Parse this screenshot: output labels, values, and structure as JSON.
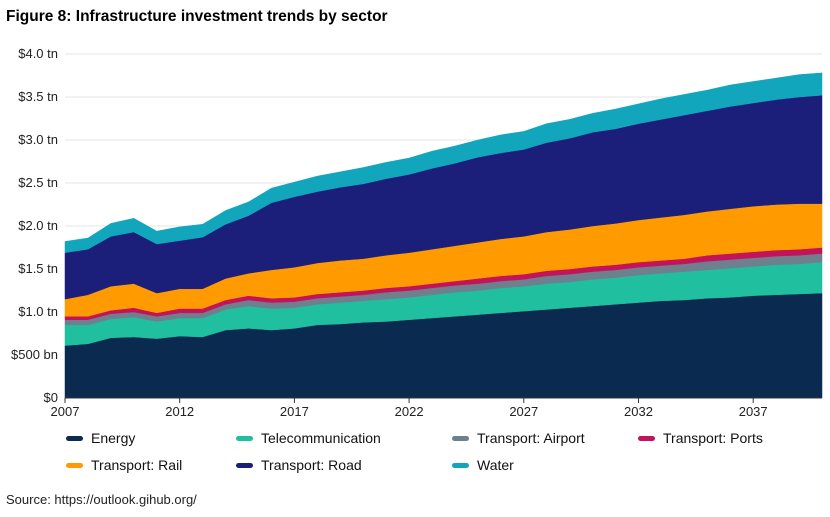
{
  "title_prefix": "Figure 8:",
  "title_text": "Infrastructure investment trends by sector",
  "source": "Source: https://outlook.gihub.org/",
  "chart_data": {
    "type": "area",
    "stacked": true,
    "x": [
      2007,
      2008,
      2009,
      2010,
      2011,
      2012,
      2013,
      2014,
      2015,
      2016,
      2017,
      2018,
      2019,
      2020,
      2021,
      2022,
      2023,
      2024,
      2025,
      2026,
      2027,
      2028,
      2029,
      2030,
      2031,
      2032,
      2033,
      2034,
      2035,
      2036,
      2037,
      2038,
      2039,
      2040
    ],
    "x_ticks": [
      "2007",
      "2012",
      "2017",
      "2022",
      "2027",
      "2032",
      "2037"
    ],
    "xlim": [
      2007,
      2040
    ],
    "y_ticks": [
      "$0",
      "$500 bn",
      "$1.0 tn",
      "$1.5 tn",
      "$2.0 tn",
      "$2.5 tn",
      "$3.0 tn",
      "$3.5 tn",
      "$4.0 tn"
    ],
    "ylim": [
      0,
      4.0
    ],
    "y_unit": "tn",
    "grid": "horizontal",
    "legend_position": "bottom",
    "series": [
      {
        "name": "Energy",
        "color": "#0b2a4f",
        "values": [
          0.61,
          0.63,
          0.7,
          0.71,
          0.69,
          0.72,
          0.71,
          0.79,
          0.81,
          0.79,
          0.81,
          0.85,
          0.86,
          0.88,
          0.89,
          0.91,
          0.93,
          0.95,
          0.97,
          0.99,
          1.01,
          1.03,
          1.05,
          1.07,
          1.09,
          1.11,
          1.13,
          1.14,
          1.16,
          1.17,
          1.19,
          1.2,
          1.21,
          1.22
        ]
      },
      {
        "name": "Telecommunication",
        "color": "#1fbf9f",
        "values": [
          0.24,
          0.22,
          0.22,
          0.23,
          0.2,
          0.21,
          0.22,
          0.24,
          0.26,
          0.25,
          0.24,
          0.24,
          0.25,
          0.25,
          0.26,
          0.26,
          0.27,
          0.28,
          0.28,
          0.29,
          0.29,
          0.3,
          0.3,
          0.31,
          0.31,
          0.32,
          0.32,
          0.33,
          0.33,
          0.34,
          0.34,
          0.35,
          0.35,
          0.36
        ]
      },
      {
        "name": "Transport: Airport",
        "color": "#6e7f8d",
        "values": [
          0.06,
          0.06,
          0.06,
          0.06,
          0.06,
          0.06,
          0.06,
          0.06,
          0.07,
          0.07,
          0.07,
          0.07,
          0.07,
          0.07,
          0.08,
          0.08,
          0.08,
          0.08,
          0.08,
          0.08,
          0.08,
          0.09,
          0.09,
          0.09,
          0.09,
          0.09,
          0.09,
          0.09,
          0.1,
          0.1,
          0.1,
          0.1,
          0.1,
          0.1
        ]
      },
      {
        "name": "Transport: Ports",
        "color": "#c3135a",
        "values": [
          0.04,
          0.04,
          0.04,
          0.05,
          0.04,
          0.05,
          0.05,
          0.05,
          0.05,
          0.05,
          0.05,
          0.05,
          0.05,
          0.05,
          0.05,
          0.05,
          0.05,
          0.05,
          0.06,
          0.06,
          0.06,
          0.06,
          0.06,
          0.06,
          0.06,
          0.06,
          0.06,
          0.06,
          0.07,
          0.07,
          0.07,
          0.07,
          0.07,
          0.07
        ]
      },
      {
        "name": "Transport: Rail",
        "color": "#ff9a00",
        "values": [
          0.2,
          0.25,
          0.28,
          0.28,
          0.23,
          0.23,
          0.23,
          0.25,
          0.26,
          0.33,
          0.35,
          0.36,
          0.37,
          0.37,
          0.38,
          0.39,
          0.4,
          0.41,
          0.42,
          0.43,
          0.44,
          0.45,
          0.46,
          0.47,
          0.48,
          0.49,
          0.5,
          0.51,
          0.51,
          0.52,
          0.53,
          0.53,
          0.53,
          0.51
        ]
      },
      {
        "name": "Transport: Road",
        "color": "#1c1f7a",
        "values": [
          0.54,
          0.53,
          0.58,
          0.6,
          0.57,
          0.56,
          0.6,
          0.63,
          0.67,
          0.78,
          0.82,
          0.83,
          0.85,
          0.87,
          0.89,
          0.91,
          0.94,
          0.96,
          0.99,
          1.0,
          1.01,
          1.04,
          1.06,
          1.09,
          1.1,
          1.12,
          1.14,
          1.16,
          1.17,
          1.19,
          1.2,
          1.22,
          1.24,
          1.26
        ]
      },
      {
        "name": "Water",
        "color": "#12a6bd",
        "values": [
          0.13,
          0.13,
          0.15,
          0.16,
          0.15,
          0.16,
          0.15,
          0.16,
          0.16,
          0.17,
          0.17,
          0.18,
          0.18,
          0.19,
          0.19,
          0.19,
          0.2,
          0.2,
          0.2,
          0.21,
          0.21,
          0.22,
          0.22,
          0.22,
          0.23,
          0.23,
          0.24,
          0.24,
          0.24,
          0.25,
          0.25,
          0.25,
          0.26,
          0.26
        ]
      }
    ]
  }
}
